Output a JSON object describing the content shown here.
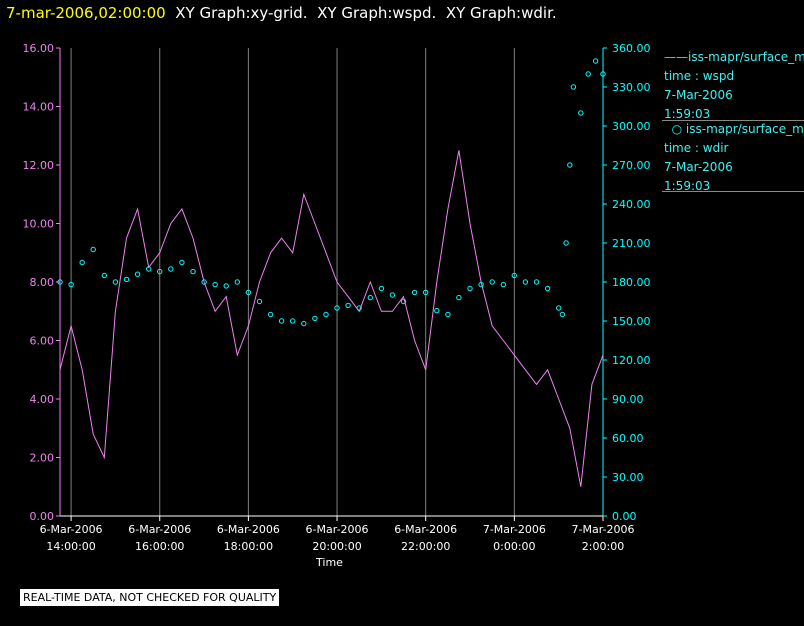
{
  "header": {
    "time": "7-mar-2006,02:00:00",
    "graphs": [
      "XY Graph:xy-grid.",
      "XY Graph:wspd.",
      "XY Graph:wdir."
    ]
  },
  "legend": [
    {
      "name": "iss-mapr/surface_m",
      "line1": "time : wspd",
      "line2": "7-Mar-2006",
      "line3": "1:59:03",
      "symbol": "line",
      "color": "#ee82ee"
    },
    {
      "name": "iss-mapr/surface_m",
      "line1": "time : wdir",
      "line2": "7-Mar-2006",
      "line3": "1:59:03",
      "symbol": "circle",
      "color": "#00ffff"
    }
  ],
  "footnote": "REAL-TIME DATA, NOT CHECKED FOR QUALITY",
  "chart_data": {
    "type": "line",
    "xlabel": "Time",
    "x_ticks": [
      {
        "date": "6-Mar-2006",
        "time": "14:00:00"
      },
      {
        "date": "6-Mar-2006",
        "time": "16:00:00"
      },
      {
        "date": "6-Mar-2006",
        "time": "18:00:00"
      },
      {
        "date": "6-Mar-2006",
        "time": "20:00:00"
      },
      {
        "date": "6-Mar-2006",
        "time": "22:00:00"
      },
      {
        "date": "7-Mar-2006",
        "time": "0:00:00"
      },
      {
        "date": "7-Mar-2006",
        "time": "2:00:00"
      }
    ],
    "xlim": [
      "6-Mar-2006 13:45",
      "7-Mar-2006 02:00"
    ],
    "y_left_ticks": [
      "0.00",
      "2.00",
      "4.00",
      "6.00",
      "8.00",
      "10.00",
      "12.00",
      "14.00",
      "16.00"
    ],
    "y_left_lim": [
      0,
      16
    ],
    "y_right_ticks": [
      "0.00",
      "30.00",
      "60.00",
      "90.00",
      "120.00",
      "150.00",
      "180.00",
      "210.00",
      "240.00",
      "270.00",
      "300.00",
      "330.00",
      "360.00"
    ],
    "y_right_lim": [
      0,
      360
    ],
    "grid": "vertical",
    "colors": {
      "wspd": "#ee82ee",
      "wdir": "#00ffff",
      "left_axis": "#ee82ee",
      "right_axis": "#00ffff",
      "grid": "#808080"
    },
    "series": [
      {
        "axis": "left",
        "style": "line",
        "x": [
          "6-Mar-2006 13:45",
          "6-Mar-2006 14:00",
          "6-Mar-2006 14:15",
          "6-Mar-2006 14:30",
          "6-Mar-2006 14:45",
          "6-Mar-2006 15:00",
          "6-Mar-2006 15:15",
          "6-Mar-2006 15:30",
          "6-Mar-2006 15:45",
          "6-Mar-2006 16:00",
          "6-Mar-2006 16:15",
          "6-Mar-2006 16:30",
          "6-Mar-2006 16:45",
          "6-Mar-2006 17:00",
          "6-Mar-2006 17:15",
          "6-Mar-2006 17:30",
          "6-Mar-2006 17:45",
          "6-Mar-2006 18:00",
          "6-Mar-2006 18:15",
          "6-Mar-2006 18:30",
          "6-Mar-2006 18:45",
          "6-Mar-2006 19:00",
          "6-Mar-2006 19:15",
          "6-Mar-2006 19:30",
          "6-Mar-2006 19:45",
          "6-Mar-2006 20:00",
          "6-Mar-2006 20:15",
          "6-Mar-2006 20:30",
          "6-Mar-2006 20:45",
          "6-Mar-2006 21:00",
          "6-Mar-2006 21:15",
          "6-Mar-2006 21:30",
          "6-Mar-2006 21:45",
          "6-Mar-2006 22:00",
          "6-Mar-2006 22:15",
          "6-Mar-2006 22:30",
          "6-Mar-2006 22:45",
          "6-Mar-2006 23:00",
          "6-Mar-2006 23:15",
          "6-Mar-2006 23:30",
          "6-Mar-2006 23:45",
          "7-Mar-2006 00:00",
          "7-Mar-2006 00:15",
          "7-Mar-2006 00:30",
          "7-Mar-2006 00:45",
          "7-Mar-2006 01:00",
          "7-Mar-2006 01:15",
          "7-Mar-2006 01:30",
          "7-Mar-2006 01:45",
          "7-Mar-2006 02:00"
        ],
        "y": [
          5.0,
          6.5,
          5.0,
          2.8,
          2.0,
          7.0,
          9.5,
          10.5,
          8.5,
          9.0,
          10.0,
          10.5,
          9.5,
          8.0,
          7.0,
          7.5,
          5.5,
          6.5,
          8.0,
          9.0,
          9.5,
          9.0,
          11.0,
          10.0,
          9.0,
          8.0,
          7.5,
          7.0,
          8.0,
          7.0,
          7.0,
          7.5,
          6.0,
          5.0,
          8.0,
          10.5,
          12.5,
          10.0,
          8.0,
          6.5,
          6.0,
          5.5,
          5.0,
          4.5,
          5.0,
          4.0,
          3.0,
          1.0,
          4.5,
          5.5
        ]
      },
      {
        "axis": "right",
        "style": "markers",
        "x": [
          "6-Mar-2006 13:45",
          "6-Mar-2006 14:00",
          "6-Mar-2006 14:15",
          "6-Mar-2006 14:30",
          "6-Mar-2006 14:45",
          "6-Mar-2006 15:00",
          "6-Mar-2006 15:15",
          "6-Mar-2006 15:30",
          "6-Mar-2006 15:45",
          "6-Mar-2006 16:00",
          "6-Mar-2006 16:15",
          "6-Mar-2006 16:30",
          "6-Mar-2006 16:45",
          "6-Mar-2006 17:00",
          "6-Mar-2006 17:15",
          "6-Mar-2006 17:30",
          "6-Mar-2006 17:45",
          "6-Mar-2006 18:00",
          "6-Mar-2006 18:15",
          "6-Mar-2006 18:30",
          "6-Mar-2006 18:45",
          "6-Mar-2006 19:00",
          "6-Mar-2006 19:15",
          "6-Mar-2006 19:30",
          "6-Mar-2006 19:45",
          "6-Mar-2006 20:00",
          "6-Mar-2006 20:15",
          "6-Mar-2006 20:30",
          "6-Mar-2006 20:45",
          "6-Mar-2006 21:00",
          "6-Mar-2006 21:15",
          "6-Mar-2006 21:30",
          "6-Mar-2006 21:45",
          "6-Mar-2006 22:00",
          "6-Mar-2006 22:15",
          "6-Mar-2006 22:30",
          "6-Mar-2006 22:45",
          "6-Mar-2006 23:00",
          "6-Mar-2006 23:15",
          "6-Mar-2006 23:30",
          "6-Mar-2006 23:45",
          "7-Mar-2006 00:00",
          "7-Mar-2006 00:15",
          "7-Mar-2006 00:30",
          "7-Mar-2006 00:45",
          "7-Mar-2006 01:00",
          "7-Mar-2006 01:05",
          "7-Mar-2006 01:10",
          "7-Mar-2006 01:15",
          "7-Mar-2006 01:20",
          "7-Mar-2006 01:30",
          "7-Mar-2006 01:40",
          "7-Mar-2006 01:50",
          "7-Mar-2006 02:00"
        ],
        "y": [
          180,
          178,
          195,
          205,
          185,
          180,
          182,
          186,
          190,
          188,
          190,
          195,
          188,
          180,
          178,
          177,
          180,
          172,
          165,
          155,
          150,
          150,
          148,
          152,
          155,
          160,
          162,
          160,
          168,
          175,
          170,
          165,
          172,
          172,
          158,
          155,
          168,
          175,
          178,
          180,
          178,
          185,
          180,
          180,
          175,
          160,
          155,
          210,
          270,
          330,
          310,
          340,
          350,
          340
        ]
      }
    ]
  }
}
